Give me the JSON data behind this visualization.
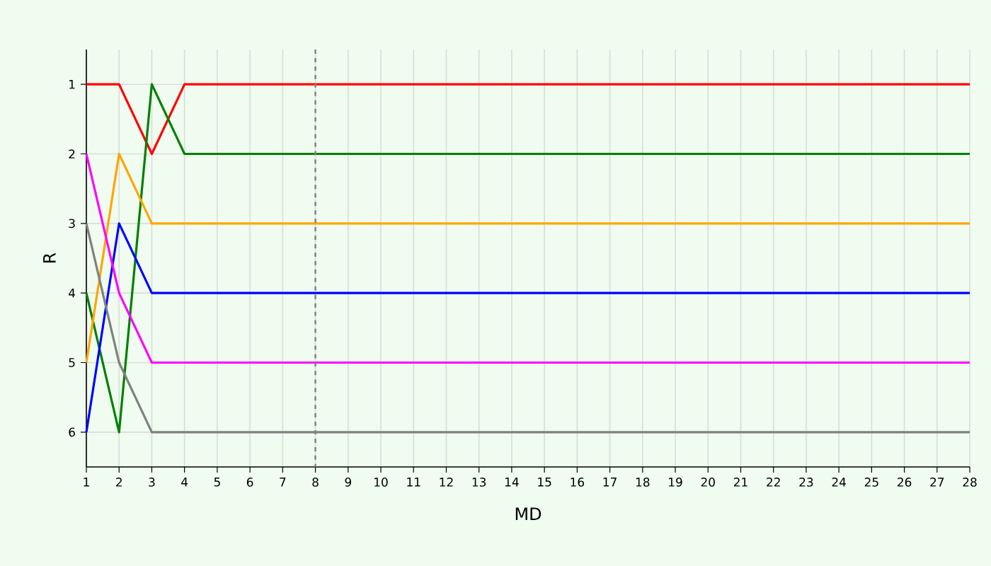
{
  "chart_data": {
    "type": "line",
    "xlabel": "MD",
    "ylabel": "R",
    "x": [
      1,
      2,
      3,
      4,
      5,
      6,
      7,
      8,
      9,
      10,
      11,
      12,
      13,
      14,
      15,
      16,
      17,
      18,
      19,
      20,
      21,
      22,
      23,
      24,
      25,
      26,
      27,
      28
    ],
    "series": [
      {
        "color": "#ff0000",
        "values": [
          1,
          1,
          2,
          1,
          1,
          1,
          1,
          1,
          1,
          1,
          1,
          1,
          1,
          1,
          1,
          1,
          1,
          1,
          1,
          1,
          1,
          1,
          1,
          1,
          1,
          1,
          1,
          1
        ]
      },
      {
        "color": "#008000",
        "values": [
          4,
          6,
          1,
          2,
          2,
          2,
          2,
          2,
          2,
          2,
          2,
          2,
          2,
          2,
          2,
          2,
          2,
          2,
          2,
          2,
          2,
          2,
          2,
          2,
          2,
          2,
          2,
          2
        ]
      },
      {
        "color": "#ffa500",
        "values": [
          5,
          2,
          3,
          3,
          3,
          3,
          3,
          3,
          3,
          3,
          3,
          3,
          3,
          3,
          3,
          3,
          3,
          3,
          3,
          3,
          3,
          3,
          3,
          3,
          3,
          3,
          3,
          3
        ]
      },
      {
        "color": "#0000ff",
        "values": [
          6,
          3,
          4,
          4,
          4,
          4,
          4,
          4,
          4,
          4,
          4,
          4,
          4,
          4,
          4,
          4,
          4,
          4,
          4,
          4,
          4,
          4,
          4,
          4,
          4,
          4,
          4,
          4
        ]
      },
      {
        "color": "#ff00ff",
        "values": [
          2,
          4,
          5,
          5,
          5,
          5,
          5,
          5,
          5,
          5,
          5,
          5,
          5,
          5,
          5,
          5,
          5,
          5,
          5,
          5,
          5,
          5,
          5,
          5,
          5,
          5,
          5,
          5
        ]
      },
      {
        "color": "#808080",
        "values": [
          3,
          5,
          6,
          6,
          6,
          6,
          6,
          6,
          6,
          6,
          6,
          6,
          6,
          6,
          6,
          6,
          6,
          6,
          6,
          6,
          6,
          6,
          6,
          6,
          6,
          6,
          6,
          6
        ]
      }
    ],
    "xlim": [
      1,
      28
    ],
    "xticks": [
      1,
      2,
      3,
      4,
      5,
      6,
      7,
      8,
      9,
      10,
      11,
      12,
      13,
      14,
      15,
      16,
      17,
      18,
      19,
      20,
      21,
      22,
      23,
      24,
      25,
      26,
      27,
      28
    ],
    "ylim": [
      6.5,
      0.5
    ],
    "yticks": [
      1,
      2,
      3,
      4,
      5,
      6
    ],
    "ref_lines": [
      {
        "axis": "x",
        "value": 8,
        "color": "#808080",
        "line_style": "dashed"
      }
    ],
    "grid": true,
    "marker": "none",
    "line_style": "solid"
  }
}
